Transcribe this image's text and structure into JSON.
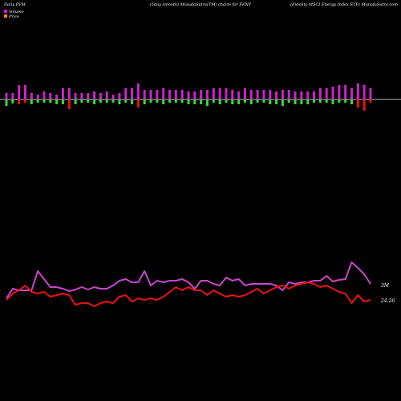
{
  "header": {
    "left": "Daily PVM",
    "center": "(5day smooth) MunafaSutra(TM) charts for FENY",
    "right": "(Fidelity MSCI Energy Index ETF) MunafaSutra.com"
  },
  "legend": {
    "items": [
      {
        "label": "Volume",
        "color": "#ff00ff"
      },
      {
        "label": "Price",
        "color": "#ff8c00"
      }
    ]
  },
  "colors": {
    "background": "#000000",
    "axis_line": "#bbbbbb",
    "up_bar": "#cc22cc",
    "down_bar_red": "#ee1111",
    "down_bar_green": "#33dd33",
    "volume_line": "#cc44cc",
    "price_line": "#ee1111"
  },
  "chart_data": [
    {
      "type": "bar",
      "name": "pvm-bars",
      "bars": [
        [
          8,
          -8,
          "g"
        ],
        [
          8,
          -5,
          "g"
        ],
        [
          18,
          -6,
          "r"
        ],
        [
          18,
          -4,
          "r"
        ],
        [
          8,
          -6,
          "g"
        ],
        [
          6,
          -4,
          "g"
        ],
        [
          10,
          -4,
          "g"
        ],
        [
          8,
          -4,
          "g"
        ],
        [
          6,
          -6,
          "g"
        ],
        [
          14,
          -6,
          "g"
        ],
        [
          14,
          -12,
          "r"
        ],
        [
          8,
          -6,
          "g"
        ],
        [
          8,
          -4,
          "g"
        ],
        [
          8,
          -4,
          "g"
        ],
        [
          10,
          -6,
          "g"
        ],
        [
          8,
          -4,
          "g"
        ],
        [
          10,
          -4,
          "g"
        ],
        [
          6,
          -4,
          "g"
        ],
        [
          8,
          -6,
          "g"
        ],
        [
          14,
          -4,
          "g"
        ],
        [
          14,
          -6,
          "g"
        ],
        [
          20,
          -10,
          "r"
        ],
        [
          12,
          -6,
          "g"
        ],
        [
          12,
          -4,
          "g"
        ],
        [
          12,
          -4,
          "g"
        ],
        [
          14,
          -6,
          "g"
        ],
        [
          12,
          -4,
          "g"
        ],
        [
          12,
          -4,
          "g"
        ],
        [
          12,
          -4,
          "g"
        ],
        [
          10,
          -6,
          "g"
        ],
        [
          10,
          -6,
          "g"
        ],
        [
          12,
          -6,
          "g"
        ],
        [
          12,
          -8,
          "g"
        ],
        [
          14,
          -4,
          "g"
        ],
        [
          14,
          -6,
          "g"
        ],
        [
          14,
          -4,
          "g"
        ],
        [
          12,
          -6,
          "g"
        ],
        [
          10,
          -6,
          "g"
        ],
        [
          14,
          -4,
          "g"
        ],
        [
          12,
          -6,
          "g"
        ],
        [
          12,
          -4,
          "g"
        ],
        [
          12,
          -4,
          "g"
        ],
        [
          12,
          -6,
          "g"
        ],
        [
          10,
          -6,
          "g"
        ],
        [
          12,
          -8,
          "g"
        ],
        [
          12,
          -4,
          "g"
        ],
        [
          10,
          -6,
          "g"
        ],
        [
          10,
          -6,
          "g"
        ],
        [
          10,
          -6,
          "g"
        ],
        [
          10,
          -4,
          "g"
        ],
        [
          14,
          -4,
          "g"
        ],
        [
          14,
          -4,
          "g"
        ],
        [
          16,
          -6,
          "g"
        ],
        [
          18,
          -4,
          "g"
        ],
        [
          18,
          -4,
          "g"
        ],
        [
          14,
          -6,
          "g"
        ],
        [
          20,
          -10,
          "r"
        ],
        [
          18,
          -14,
          "r"
        ],
        [
          14,
          -4,
          "r"
        ]
      ]
    },
    {
      "type": "line",
      "name": "volume",
      "label": "3M",
      "values": [
        372,
        360,
        362,
        362,
        362,
        338,
        348,
        358,
        358,
        360,
        363,
        361,
        358,
        361,
        358,
        360,
        360,
        356,
        350,
        348,
        352,
        352,
        338,
        356,
        350,
        352,
        350,
        350,
        348,
        352,
        360,
        350,
        350,
        354,
        356,
        346,
        350,
        348,
        356,
        354,
        354,
        354,
        354,
        356,
        362,
        352,
        354,
        352,
        352,
        350,
        350,
        344,
        351,
        349,
        348,
        327,
        334,
        342,
        354
      ]
    },
    {
      "type": "line",
      "name": "price",
      "label": "24.26",
      "values": [
        374,
        366,
        362,
        356,
        364,
        366,
        364,
        370,
        368,
        366,
        368,
        380,
        378,
        378,
        382,
        378,
        376,
        378,
        370,
        368,
        376,
        372,
        374,
        372,
        374,
        370,
        364,
        358,
        362,
        358,
        362,
        362,
        368,
        362,
        366,
        370,
        368,
        370,
        368,
        364,
        360,
        366,
        362,
        358,
        356,
        360,
        356,
        354,
        352,
        354,
        358,
        356,
        360,
        364,
        366,
        378,
        368,
        376,
        374
      ]
    }
  ]
}
